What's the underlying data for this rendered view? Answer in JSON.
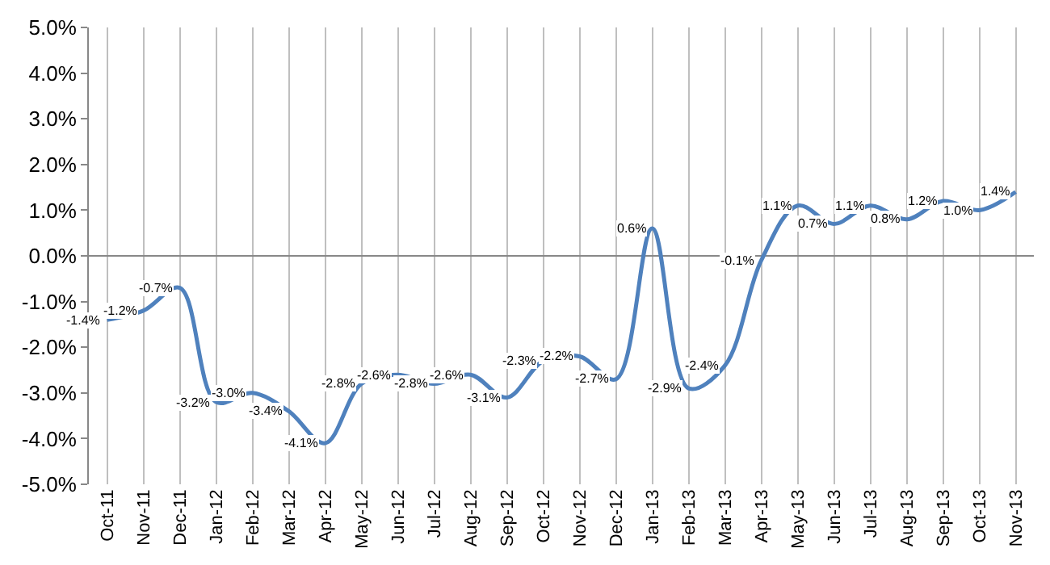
{
  "chart_data": {
    "type": "line",
    "categories": [
      "Oct-11",
      "Nov-11",
      "Dec-11",
      "Jan-12",
      "Feb-12",
      "Mar-12",
      "Apr-12",
      "May-12",
      "Jun-12",
      "Jul-12",
      "Aug-12",
      "Sep-12",
      "Oct-12",
      "Nov-12",
      "Dec-12",
      "Jan-13",
      "Feb-13",
      "Mar-13",
      "Apr-13",
      "May-13",
      "Jun-13",
      "Jul-13",
      "Aug-13",
      "Sep-13",
      "Oct-13",
      "Nov-13"
    ],
    "series": [
      {
        "color": "#4f81bd",
        "values": [
          -1.4,
          -1.2,
          -0.7,
          -3.2,
          -3.0,
          -3.4,
          -4.1,
          -2.8,
          -2.6,
          -2.8,
          -2.6,
          -3.1,
          -2.3,
          -2.2,
          -2.7,
          0.6,
          -2.9,
          -2.4,
          -0.1,
          1.1,
          0.7,
          1.1,
          0.8,
          1.2,
          1.0,
          1.4
        ],
        "value_labels": [
          "-1.4%",
          "-1.2%",
          "-0.7%",
          "-3.2%",
          "-3.0%",
          "-3.4%",
          "-4.1%",
          "-2.8%",
          "-2.6%",
          "-2.8%",
          "-2.6%",
          "-3.1%",
          "-2.3%",
          "-2.2%",
          "-2.7%",
          "0.6%",
          "-2.9%",
          "-2.4%",
          "-0.1%",
          "1.1%",
          "0.7%",
          "1.1%",
          "0.8%",
          "1.2%",
          "1.0%",
          "1.4%"
        ]
      }
    ],
    "ylim": [
      -5.0,
      5.0
    ],
    "yticks": [
      {
        "value": -5,
        "label": "-5.0%"
      },
      {
        "value": -4,
        "label": "-4.0%"
      },
      {
        "value": -3,
        "label": "-3.0%"
      },
      {
        "value": -2,
        "label": "-2.0%"
      },
      {
        "value": -1,
        "label": "-1.0%"
      },
      {
        "value": 0,
        "label": "0.0%"
      },
      {
        "value": 1,
        "label": "1.0%"
      },
      {
        "value": 2,
        "label": "2.0%"
      },
      {
        "value": 3,
        "label": "3.0%"
      },
      {
        "value": 4,
        "label": "4.0%"
      },
      {
        "value": 5,
        "label": "5.0%"
      }
    ],
    "grid": "x",
    "marker": "none",
    "line_style": "solid"
  }
}
